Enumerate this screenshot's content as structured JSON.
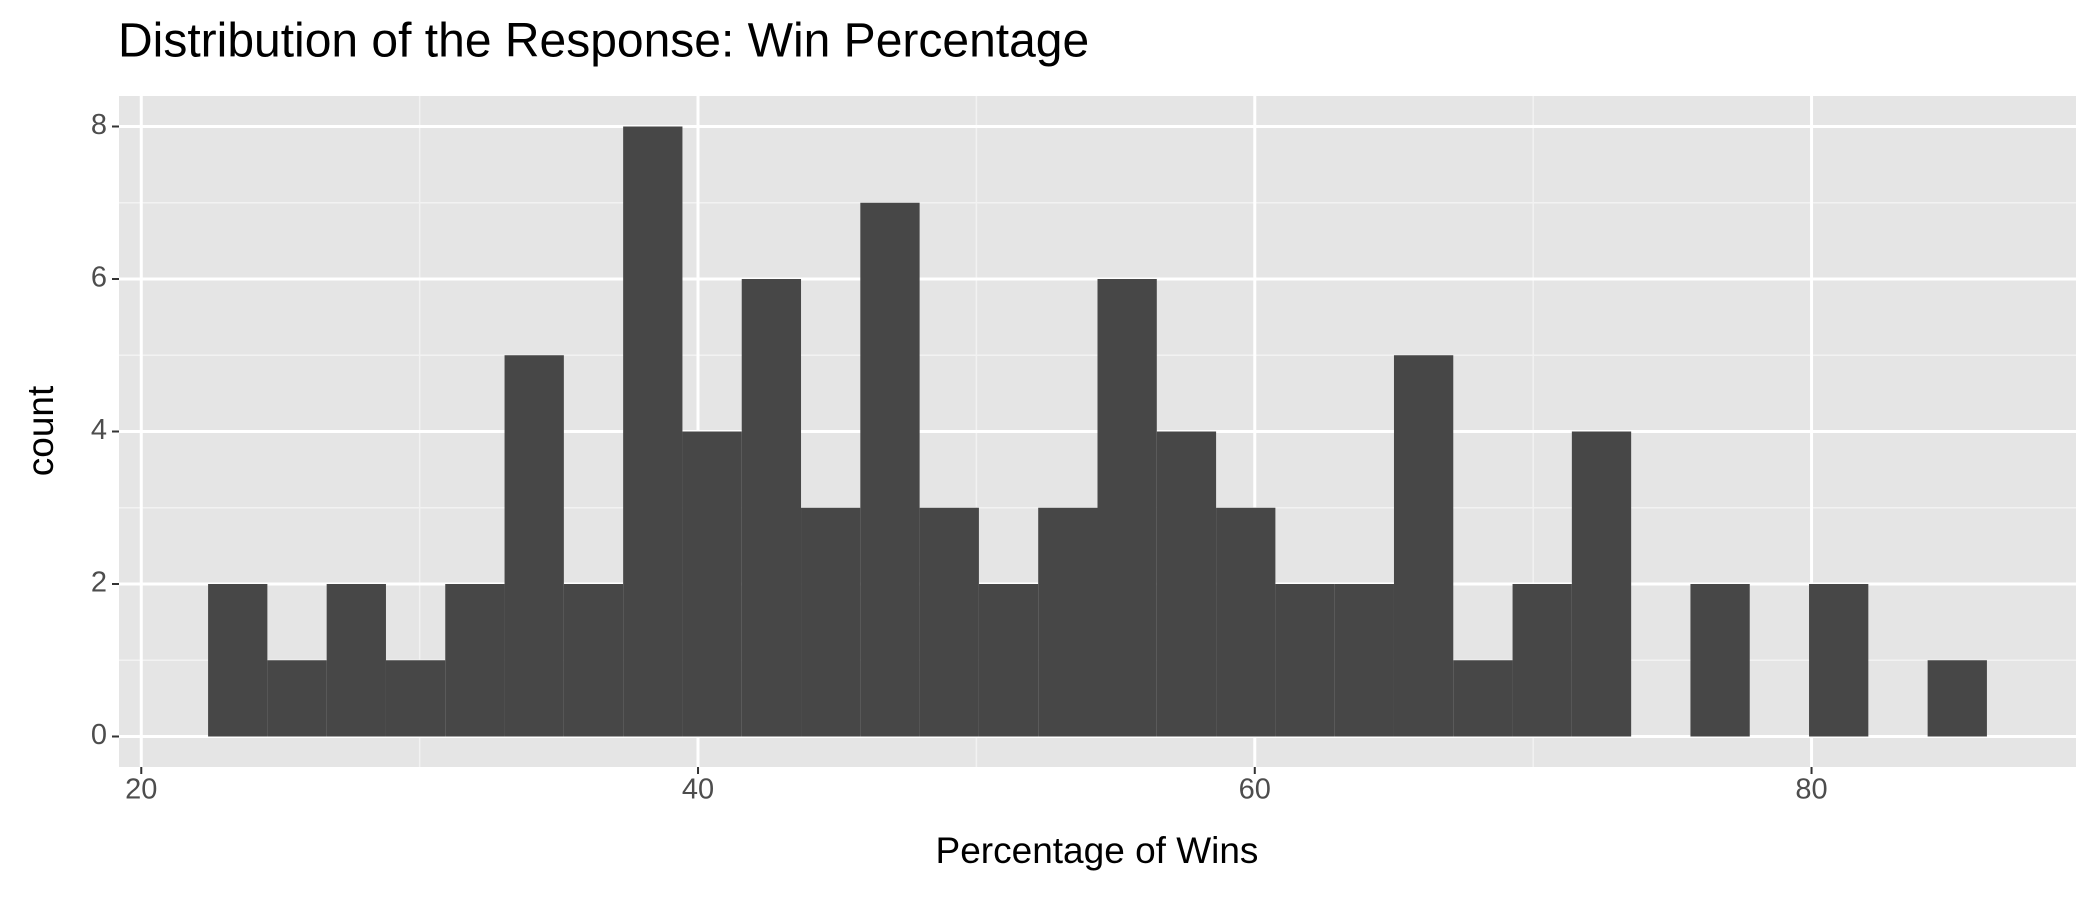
{
  "chart_data": {
    "type": "histogram",
    "title": "Distribution of the Response: Win Percentage",
    "x_label": "Percentage of Wins",
    "y_label": "count",
    "bins": [
      22.4,
      24.53,
      26.66,
      28.79,
      30.92,
      33.05,
      35.18,
      37.31,
      39.44,
      41.57,
      43.7,
      45.83,
      47.96,
      50.09,
      52.22,
      54.35,
      56.48,
      58.61,
      60.74,
      62.87,
      65.0,
      67.13,
      69.26,
      71.39,
      73.52,
      75.65,
      77.78,
      79.91,
      82.04,
      84.17,
      86.3
    ],
    "values": [
      2,
      1,
      2,
      1,
      2,
      5,
      2,
      8,
      4,
      6,
      3,
      7,
      3,
      2,
      3,
      6,
      4,
      3,
      2,
      2,
      5,
      1,
      2,
      4,
      0,
      2,
      0,
      2,
      0,
      1
    ],
    "color": "#474747",
    "xlim": [
      19.2,
      89.5
    ],
    "xticks": [
      20,
      40,
      60,
      80
    ],
    "ylim": [
      -0.4,
      8.4
    ],
    "yticks": [
      0,
      2,
      4,
      6,
      8
    ],
    "grid": true
  }
}
